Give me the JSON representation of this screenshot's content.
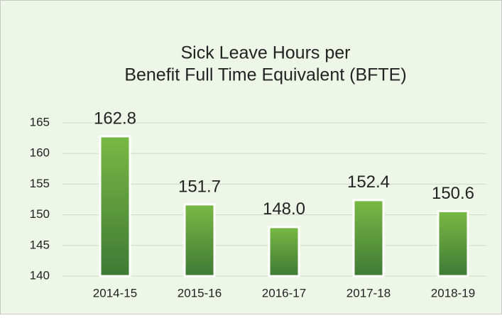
{
  "chart_data": {
    "type": "bar",
    "title": [
      "Sick Leave Hours per",
      "Benefit Full Time Equivalent (BFTE)"
    ],
    "categories": [
      "2014-15",
      "2015-16",
      "2016-17",
      "2017-18",
      "2018-19"
    ],
    "values": [
      162.8,
      151.7,
      148.0,
      152.4,
      150.6
    ],
    "value_labels": [
      "162.8",
      "151.7",
      "148.0",
      "152.4",
      "150.6"
    ],
    "color": [
      "#78b944",
      "#3f7a35"
    ],
    "ylim": [
      140,
      165
    ],
    "yticks": [
      140,
      145,
      150,
      155,
      160,
      165
    ],
    "grid": true
  }
}
